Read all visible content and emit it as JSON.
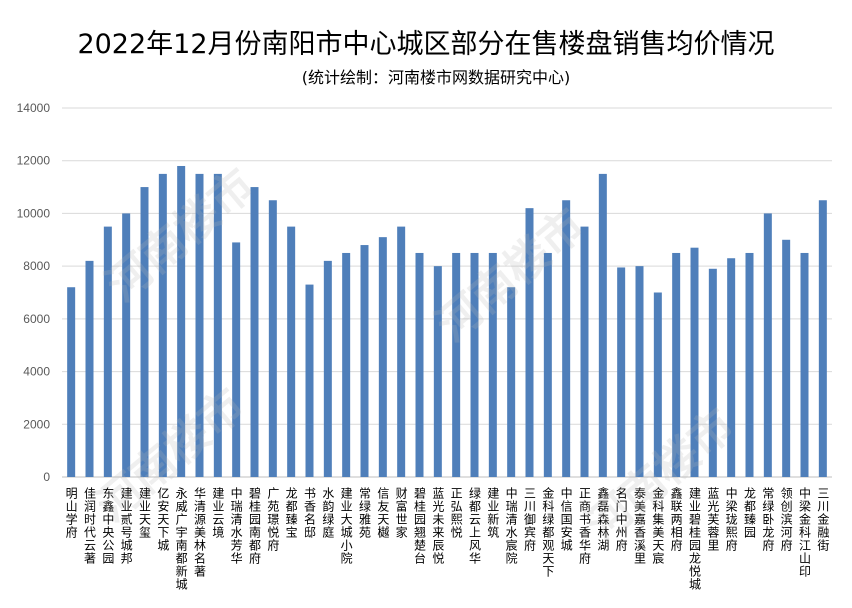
{
  "chart_data": {
    "type": "bar",
    "title": "2022年12月份南阳市中心城区部分在售楼盘销售均价情况",
    "subtitle": "(统计绘制：河南楼市网数据研究中心)",
    "xlabel": "",
    "ylabel": "",
    "ylim": [
      0,
      14000
    ],
    "yticks": [
      0,
      2000,
      4000,
      6000,
      8000,
      10000,
      12000,
      14000
    ],
    "grid": true,
    "legend": "none",
    "bar_color": "#4f7fba",
    "categories": [
      "明山学府",
      "佳润时代云著",
      "东鑫中央公园",
      "建业贰号城邦",
      "建业天玺",
      "亿安天下城",
      "永威广宇南都新城",
      "华清源美林名著",
      "建业云境",
      "中瑞清水芳华",
      "碧桂园南都府",
      "广苑璟悦府",
      "龙都臻宝",
      "书香名邸",
      "水韵绿庭",
      "建业大城小院",
      "常绿雅苑",
      "信友天樾",
      "财富世家",
      "碧桂园翘楚台",
      "蓝光未来辰悦",
      "正弘熙悦",
      "绿都云上风华",
      "建业新筑",
      "中瑞清水宸院",
      "三川御宾府",
      "金科绿都观天下",
      "中信国安城",
      "正商书香华府",
      "鑫磊森林湖",
      "名门中州府",
      "泰美嘉香溪里",
      "金科集美天宸",
      "鑫联两相府",
      "建业碧桂园龙悦城",
      "蓝光芙蓉里",
      "中梁珑熙府",
      "龙都臻园",
      "常绿卧龙府",
      "领创滨河府",
      "中梁金科江山印",
      "三川金融街"
    ],
    "values": [
      7200,
      8200,
      9500,
      10000,
      11000,
      11500,
      11800,
      11500,
      11500,
      8900,
      11000,
      10500,
      9500,
      7300,
      8200,
      8500,
      8800,
      9100,
      9500,
      8500,
      8000,
      8500,
      8500,
      8500,
      7200,
      10200,
      8500,
      10500,
      9500,
      11500,
      7950,
      8000,
      7000,
      8500,
      8700,
      7900,
      8300,
      8500,
      10000,
      9000,
      8500,
      10500
    ]
  },
  "watermark": "河南楼市"
}
